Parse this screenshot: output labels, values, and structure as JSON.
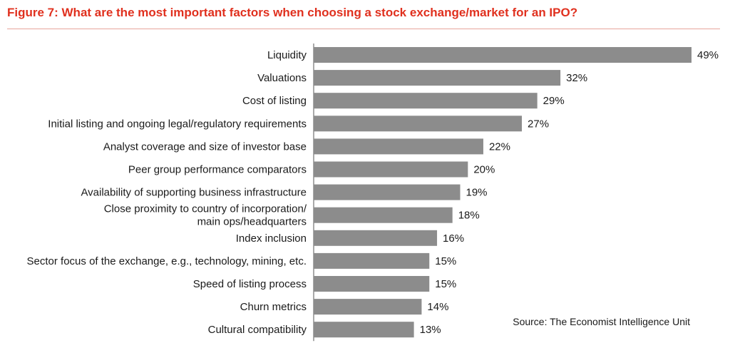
{
  "chart_data": {
    "type": "bar",
    "orientation": "horizontal",
    "title": "Figure 7: What are the most important factors when choosing a stock exchange/market for an IPO?",
    "source": "Source: The Economist Intelligence Unit",
    "categories": [
      "Liquidity",
      "Valuations",
      "Cost of listing",
      "Initial listing and ongoing legal/regulatory requirements",
      "Analyst coverage and size of investor base",
      "Peer group performance comparators",
      "Availability of supporting business infrastructure",
      [
        "Close proximity to country of incorporation/",
        "main ops/headquarters"
      ],
      "Index inclusion",
      "Sector focus of the exchange, e.g., technology, mining, etc.",
      "Speed of listing process",
      "Churn metrics",
      "Cultural compatibility"
    ],
    "values": [
      49,
      32,
      29,
      27,
      22,
      20,
      19,
      18,
      16,
      15,
      15,
      14,
      13
    ],
    "value_labels": [
      "49%",
      "32%",
      "29%",
      "27%",
      "22%",
      "20%",
      "19%",
      "18%",
      "16%",
      "15%",
      "15%",
      "14%",
      "13%"
    ],
    "unit": "%",
    "xlim": [
      0,
      49
    ],
    "grid": false,
    "bar_color": "#8c8c8c",
    "title_color": "#e0301e"
  }
}
